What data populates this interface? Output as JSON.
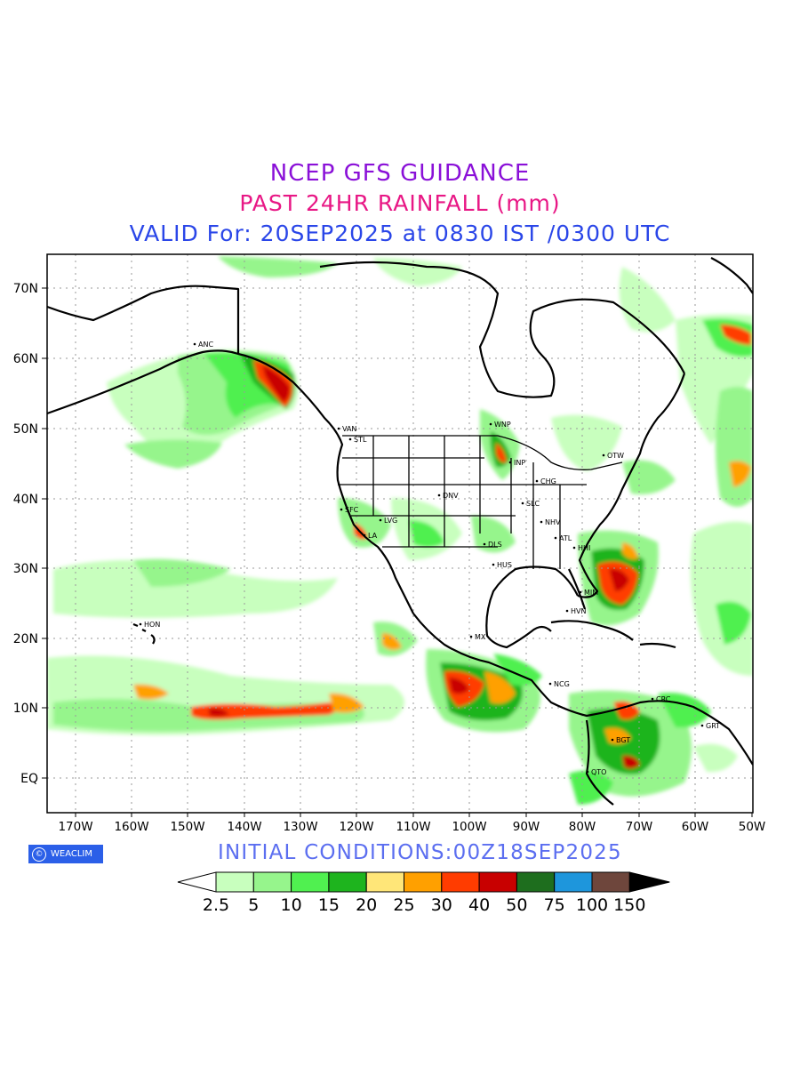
{
  "header": {
    "line1": "NCEP GFS GUIDANCE",
    "line2": "PAST 24HR RAINFALL (mm)",
    "line3": "VALID For: 20SEP2025 at 0830 IST /0300 UTC"
  },
  "footer": {
    "logo_text": "WEACLIM",
    "initial_conditions": "INITIAL CONDITIONS:00Z18SEP2025"
  },
  "map": {
    "lat_labels": [
      "70N",
      "60N",
      "50N",
      "40N",
      "30N",
      "20N",
      "10N",
      "EQ"
    ],
    "lon_labels": [
      "170W",
      "160W",
      "150W",
      "140W",
      "130W",
      "120W",
      "110W",
      "100W",
      "90W",
      "80W",
      "70W",
      "60W",
      "50W"
    ],
    "cities": [
      "ANC",
      "VAN",
      "STL",
      "WNP",
      "INP",
      "OTW",
      "CHG",
      "DNV",
      "SLC",
      "SFC",
      "LVG",
      "LA",
      "NHV",
      "DLS",
      "ATL",
      "HHI",
      "HUS",
      "MIM",
      "HVN",
      "HON",
      "MX",
      "NCG",
      "CRC",
      "GRT",
      "BGT",
      "QTO"
    ]
  },
  "legend": {
    "colors": [
      "#c8ffbe",
      "#96f58c",
      "#50f050",
      "#1eb41e",
      "#ffe678",
      "#ffa000",
      "#ff3c00",
      "#c80000",
      "#1e6e1e",
      "#1e96dc",
      "#6e463c"
    ],
    "labels": [
      "2.5",
      "5",
      "10",
      "15",
      "20",
      "25",
      "30",
      "40",
      "50",
      "75",
      "100",
      "150"
    ]
  }
}
